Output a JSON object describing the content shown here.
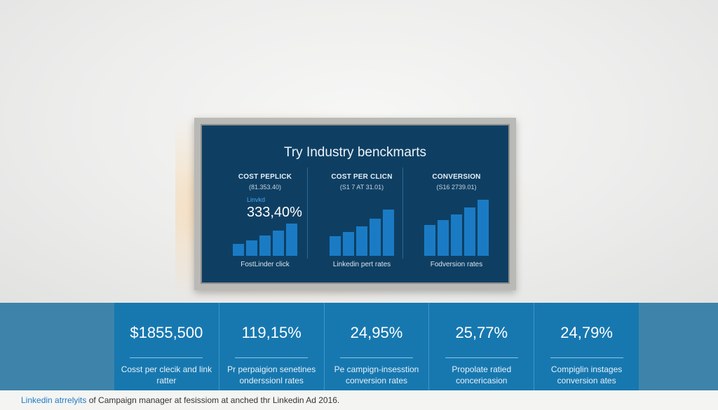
{
  "screen": {
    "title": "Try Industry benckmarts",
    "columns": [
      {
        "heading": "COST PEPLICK",
        "sub": "(81.353.40)",
        "tag": "Linvkd",
        "big": "333,40%",
        "caption": "FostLinder click",
        "bars": [
          14,
          18,
          23,
          29,
          37
        ]
      },
      {
        "heading": "COST PER CLICN",
        "sub": "(S1 7 AT 31.01)",
        "tag": "",
        "big": "",
        "caption": "Linkedin pert rates",
        "bars": [
          26,
          32,
          39,
          50,
          62
        ]
      },
      {
        "heading": "CONVERSION",
        "sub": "(S16 2739.01)",
        "tag": "",
        "big": "",
        "caption": "Fodversion rates",
        "bars": [
          42,
          48,
          56,
          66,
          76
        ]
      }
    ]
  },
  "cards": [
    {
      "value": "$1855,500",
      "desc_line1": "Cosst per clecik and link",
      "desc_line2": "ratter"
    },
    {
      "value": "119,15%",
      "desc_line1": "Pr perpaigion senetines",
      "desc_line2": "onderssionl rates"
    },
    {
      "value": "24,95%",
      "desc_line1": "Pe campign-insesstion",
      "desc_line2": "conversion rates"
    },
    {
      "value": "25,77%",
      "desc_line1": "Propolate ratied",
      "desc_line2": "concericasion"
    },
    {
      "value": "24,79%",
      "desc_line1": "Compiglin instages",
      "desc_line2": "conversion ates"
    }
  ],
  "footer": {
    "brand": "Linkedin atrrelyits",
    "text": " of Campaign manager at fesissiom at anched thr Linkedin Ad 2016."
  }
}
